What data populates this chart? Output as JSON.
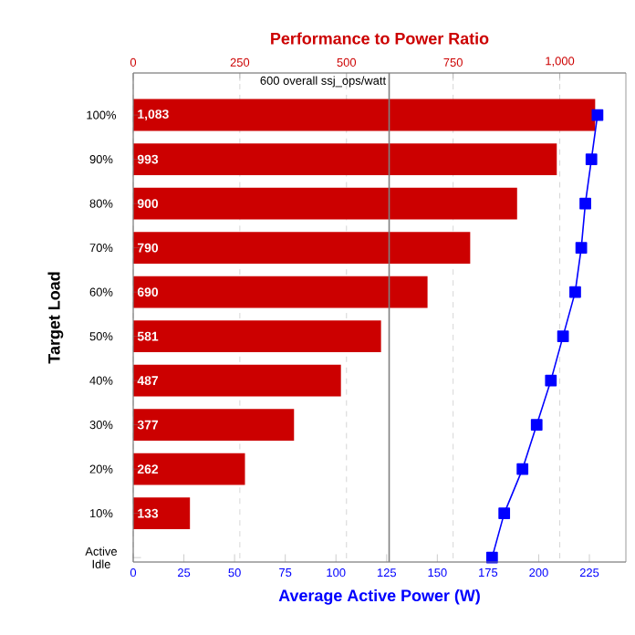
{
  "chart_data": {
    "type": "bar",
    "orientation": "horizontal",
    "x2label": "Performance to Power Ratio",
    "xlabel": "Average Active Power (W)",
    "ylabel": "Target Load",
    "categories": [
      "100%",
      "90%",
      "80%",
      "70%",
      "60%",
      "50%",
      "40%",
      "30%",
      "20%",
      "10%",
      "Active Idle"
    ],
    "series": [
      {
        "axis": "x2",
        "color": "#cc0000",
        "values": [
          1083,
          993,
          900,
          790,
          690,
          581,
          487,
          377,
          262,
          133,
          null
        ],
        "value_labels": [
          "1,083",
          "993",
          "900",
          "790",
          "690",
          "581",
          "487",
          "377",
          "262",
          "133",
          null
        ]
      },
      {
        "type": "line",
        "color": "#0000ff",
        "marker": "square",
        "line_style": "solid",
        "values": [
          229,
          226,
          223,
          221,
          218,
          212,
          206,
          199,
          192,
          183,
          177
        ]
      }
    ],
    "xlim": [
      0,
      243
    ],
    "xticks": [
      0,
      25,
      50,
      75,
      100,
      125,
      150,
      175,
      200,
      225
    ],
    "x2lim": [
      0,
      1155
    ],
    "x2ticks": [
      0,
      250,
      500,
      750,
      {
        "value": 1000,
        "label": "1,000"
      }
    ],
    "ref_lines": [
      {
        "axis": "x2",
        "value": 600,
        "label": "600 overall ssj_ops/watt",
        "color": "#808080"
      }
    ],
    "grid": true
  }
}
